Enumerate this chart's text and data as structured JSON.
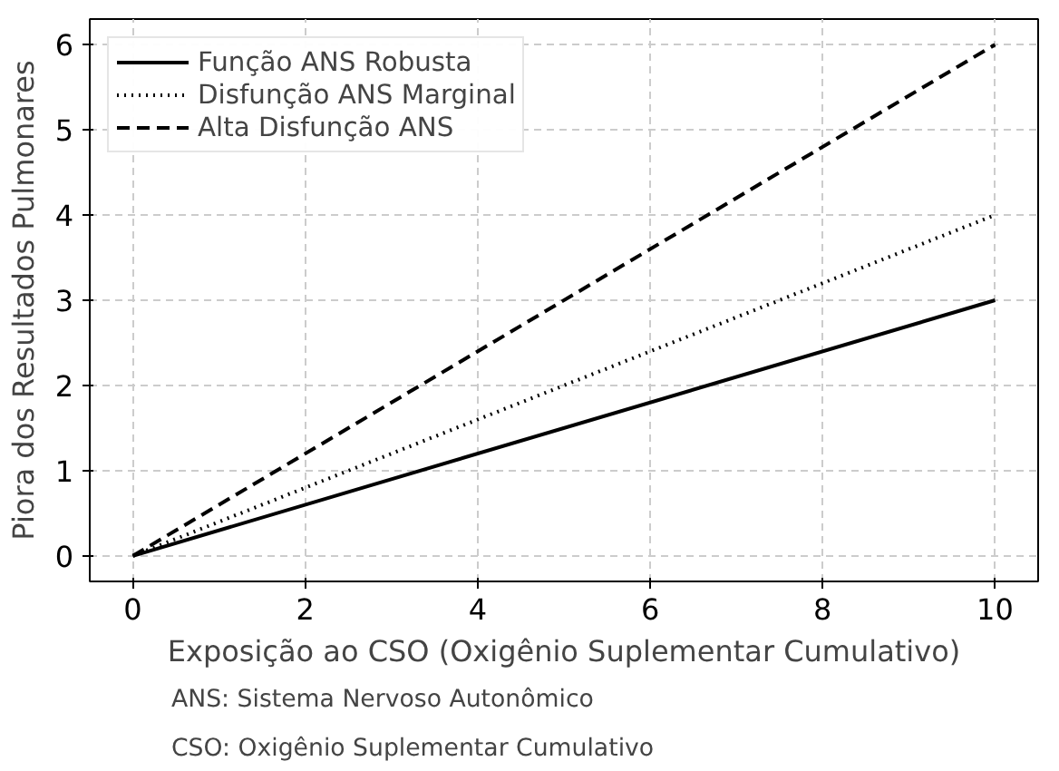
{
  "chart_data": {
    "type": "line",
    "xlabel": "Exposição ao CSO (Oxigênio Suplementar Cumulativo)",
    "ylabel": "Piora dos Resultados Pulmonares",
    "x": [
      0,
      10
    ],
    "xlim": [
      -0.5,
      10.5
    ],
    "ylim": [
      -0.3,
      6.3
    ],
    "xticks": [
      0,
      2,
      4,
      6,
      8,
      10
    ],
    "yticks": [
      0,
      1,
      2,
      3,
      4,
      5,
      6
    ],
    "grid": true,
    "legend": "top left",
    "marker": "none",
    "series": [
      {
        "name": "Função ANS Robusta",
        "color": "#000000",
        "line_style": "solid",
        "values": [
          0,
          3
        ]
      },
      {
        "name": "Disfunção ANS Marginal",
        "color": "#000000",
        "line_style": "dotted",
        "values": [
          0,
          4
        ]
      },
      {
        "name": "Alta Disfunção ANS",
        "color": "#000000",
        "line_style": "dashed",
        "values": [
          0,
          6
        ]
      }
    ],
    "annotations": [
      "ANS: Sistema Nervoso Autonômico",
      "CSO: Oxigênio Suplementar Cumulativo"
    ]
  }
}
